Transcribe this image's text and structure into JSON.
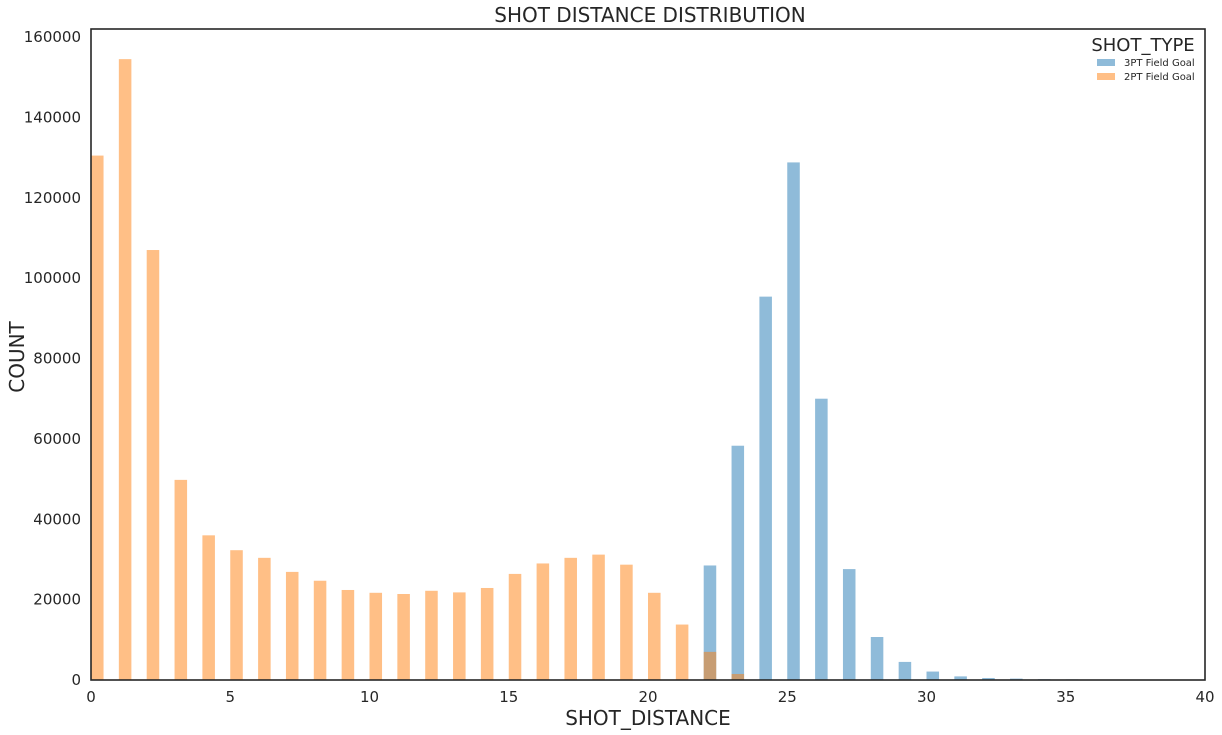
{
  "chart_data": {
    "type": "bar",
    "title": "SHOT DISTANCE DISTRIBUTION",
    "xlabel": "SHOT_DISTANCE",
    "ylabel": "COUNT",
    "xlim": [
      0,
      40
    ],
    "ylim": [
      0,
      162000
    ],
    "xticks": [
      0,
      5,
      10,
      15,
      20,
      25,
      30,
      35,
      40
    ],
    "yticks": [
      0,
      20000,
      40000,
      60000,
      80000,
      100000,
      120000,
      140000,
      160000
    ],
    "grid": false,
    "legend": {
      "title": "SHOT_TYPE",
      "placement": "top-right",
      "entries": [
        "3PT Field Goal",
        "2PT Field Goal"
      ]
    },
    "bar_width": 0.45,
    "series": [
      {
        "name": "3PT Field Goal",
        "color": "#1f77b4",
        "opacity": 0.5,
        "points": [
          {
            "x": 22,
            "y": 28500
          },
          {
            "x": 23,
            "y": 58300
          },
          {
            "x": 24,
            "y": 95400
          },
          {
            "x": 25,
            "y": 128800
          },
          {
            "x": 26,
            "y": 70000
          },
          {
            "x": 27,
            "y": 27600
          },
          {
            "x": 28,
            "y": 10700
          },
          {
            "x": 29,
            "y": 4500
          },
          {
            "x": 30,
            "y": 2100
          },
          {
            "x": 31,
            "y": 900
          },
          {
            "x": 32,
            "y": 500
          },
          {
            "x": 33,
            "y": 350
          },
          {
            "x": 34,
            "y": 200
          },
          {
            "x": 35,
            "y": 150
          },
          {
            "x": 36,
            "y": 120
          },
          {
            "x": 37,
            "y": 100
          },
          {
            "x": 38,
            "y": 80
          },
          {
            "x": 39,
            "y": 60
          }
        ]
      },
      {
        "name": "2PT Field Goal",
        "color": "#ff7f0e",
        "opacity": 0.5,
        "points": [
          {
            "x": 0,
            "y": 130500
          },
          {
            "x": 1,
            "y": 154500
          },
          {
            "x": 2,
            "y": 107000
          },
          {
            "x": 3,
            "y": 49800
          },
          {
            "x": 4,
            "y": 36000
          },
          {
            "x": 5,
            "y": 32300
          },
          {
            "x": 6,
            "y": 30400
          },
          {
            "x": 7,
            "y": 26900
          },
          {
            "x": 8,
            "y": 24700
          },
          {
            "x": 9,
            "y": 22400
          },
          {
            "x": 10,
            "y": 21700
          },
          {
            "x": 11,
            "y": 21400
          },
          {
            "x": 12,
            "y": 22200
          },
          {
            "x": 13,
            "y": 21800
          },
          {
            "x": 14,
            "y": 22900
          },
          {
            "x": 15,
            "y": 26400
          },
          {
            "x": 16,
            "y": 29000
          },
          {
            "x": 17,
            "y": 30400
          },
          {
            "x": 18,
            "y": 31200
          },
          {
            "x": 19,
            "y": 28700
          },
          {
            "x": 20,
            "y": 21700
          },
          {
            "x": 21,
            "y": 13800
          },
          {
            "x": 22,
            "y": 7000
          },
          {
            "x": 23,
            "y": 1500
          }
        ]
      }
    ]
  }
}
